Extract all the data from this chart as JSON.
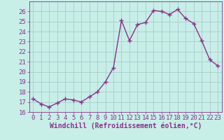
{
  "x": [
    0,
    1,
    2,
    3,
    4,
    5,
    6,
    7,
    8,
    9,
    10,
    11,
    12,
    13,
    14,
    15,
    16,
    17,
    18,
    19,
    20,
    21,
    22,
    23
  ],
  "y": [
    17.3,
    16.8,
    16.5,
    16.9,
    17.3,
    17.2,
    17.0,
    17.5,
    18.0,
    19.0,
    20.4,
    25.1,
    23.1,
    24.7,
    24.9,
    26.1,
    26.0,
    25.7,
    26.2,
    25.3,
    24.8,
    23.1,
    21.2,
    20.6
  ],
  "line_color": "#883388",
  "marker": "+",
  "marker_size": 4,
  "bg_color": "#c8eee8",
  "grid_color": "#aacccc",
  "xlabel": "Windchill (Refroidissement éolien,°C)",
  "ylabel": "",
  "ylim": [
    16,
    27
  ],
  "xlim": [
    -0.5,
    23.5
  ],
  "yticks": [
    16,
    17,
    18,
    19,
    20,
    21,
    22,
    23,
    24,
    25,
    26
  ],
  "xticks": [
    0,
    1,
    2,
    3,
    4,
    5,
    6,
    7,
    8,
    9,
    10,
    11,
    12,
    13,
    14,
    15,
    16,
    17,
    18,
    19,
    20,
    21,
    22,
    23
  ],
  "tick_color": "#883388",
  "tick_fontsize": 6.5,
  "xlabel_fontsize": 7,
  "line_width": 1.0
}
